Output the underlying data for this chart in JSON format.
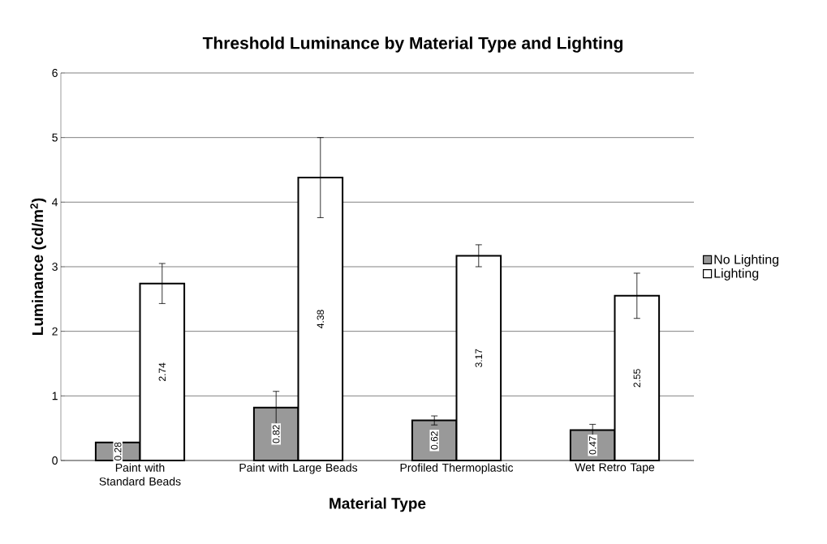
{
  "chart_data": {
    "type": "bar",
    "title": "Threshold Luminance by Material Type and Lighting",
    "xlabel": "Material Type",
    "ylabel": "Luminance (cd/m$^{2}$)",
    "categories": [
      "Paint with Standard Beads",
      "Paint with Large Beads",
      "Profiled Thermoplastic",
      "Wet Retro Tape"
    ],
    "series": [
      {
        "name": "No Lighting",
        "color": "#999999",
        "values": [
          0.28,
          0.82,
          0.62,
          0.47
        ],
        "errors": [
          null,
          0.25,
          0.07,
          0.09
        ]
      },
      {
        "name": "Lighting",
        "color": "#ffffff",
        "values": [
          2.74,
          4.38,
          3.17,
          2.55
        ],
        "errors": [
          0.31,
          0.62,
          0.17,
          0.35
        ]
      }
    ],
    "ylim": [
      0,
      6
    ],
    "yticks": [
      0,
      1,
      2,
      3,
      4,
      5,
      6
    ],
    "grid": "y",
    "legend": "right",
    "data_labels": true
  }
}
